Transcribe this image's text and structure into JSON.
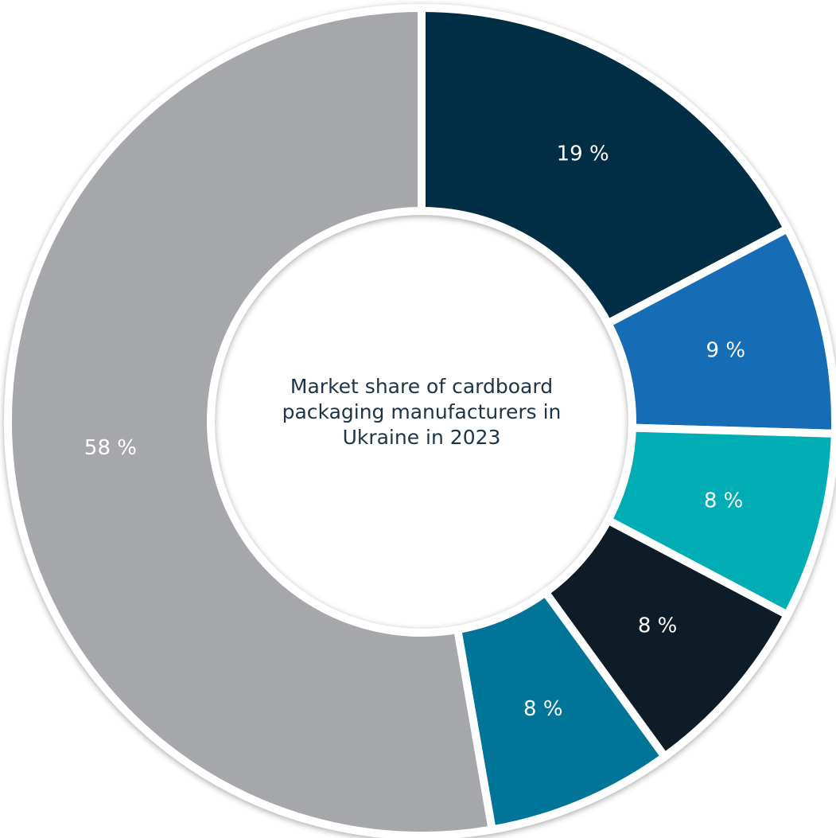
{
  "chart_data": {
    "type": "donut",
    "title": "Market share of cardboard packaging manufacturers in Ukraine in 2023",
    "values": [
      19,
      9,
      8,
      8,
      8,
      58
    ],
    "value_labels": [
      "19 %",
      "9 %",
      "8 %",
      "8 %",
      "8 %",
      "58 %"
    ],
    "colors": [
      "#022d45",
      "#136db5",
      "#00adb5",
      "#111b28",
      "#007497",
      "#a6a7ab"
    ]
  }
}
